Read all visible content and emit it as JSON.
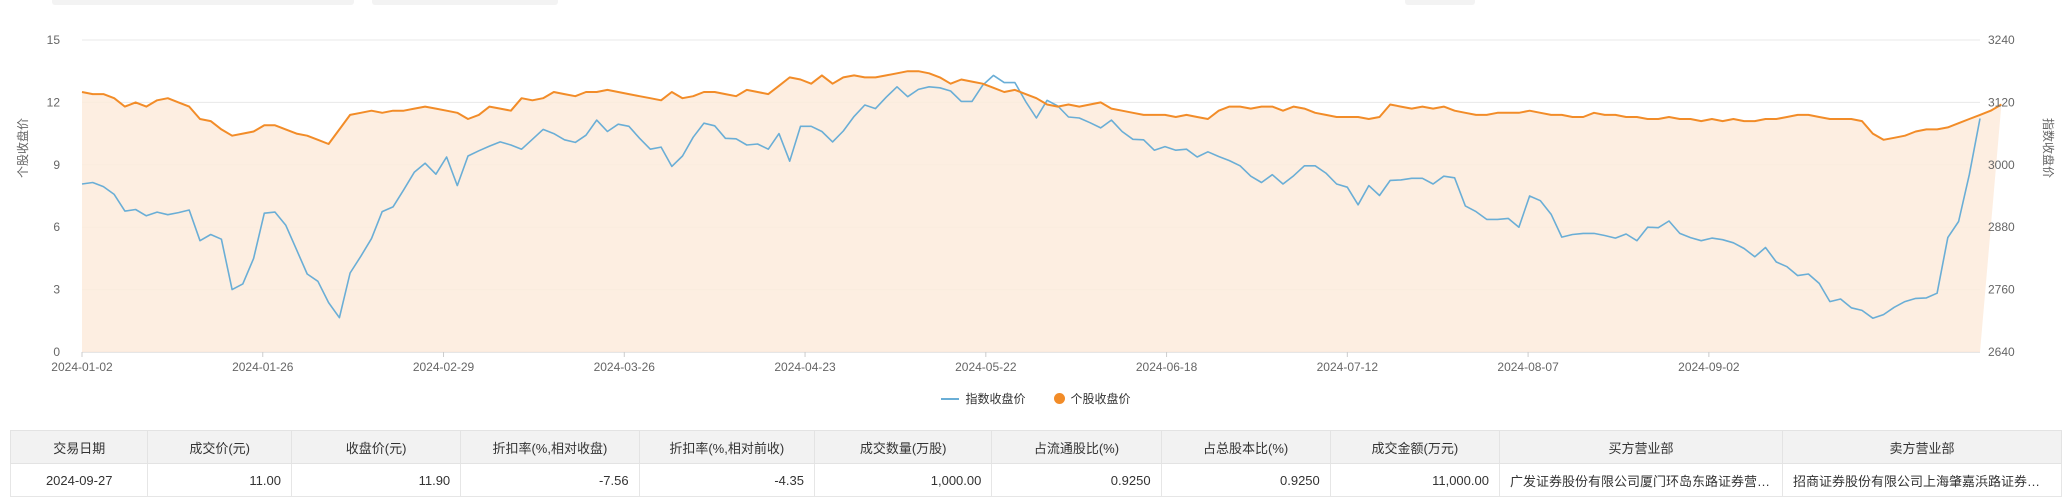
{
  "chart_data": {
    "type": "line",
    "title": "",
    "y_left": {
      "label": "个股收盘价",
      "ticks": [
        "0",
        "3",
        "6",
        "9",
        "12",
        "15"
      ],
      "range": [
        0,
        15
      ]
    },
    "y_right": {
      "label": "指数收盘价",
      "ticks": [
        "2640",
        "2760",
        "2880",
        "3000",
        "3120",
        "3240"
      ],
      "range": [
        2640,
        3240
      ]
    },
    "x_ticks": [
      "2024-01-02",
      "2024-01-26",
      "2024-02-29",
      "2024-03-26",
      "2024-04-23",
      "2024-05-22",
      "2024-06-18",
      "2024-07-12",
      "2024-08-07",
      "2024-09-02"
    ],
    "legend_position": "bottom-center",
    "grid": true,
    "series": [
      {
        "name": "指数收盘价",
        "axis": "right",
        "color": "#6aaed6",
        "style": "line",
        "values": [
          2963,
          2966,
          2958,
          2943,
          2911,
          2914,
          2902,
          2909,
          2904,
          2908,
          2913,
          2854,
          2866,
          2857,
          2760,
          2771,
          2820,
          2907,
          2909,
          2884,
          2837,
          2790,
          2776,
          2735,
          2706,
          2792,
          2824,
          2858,
          2910,
          2919,
          2952,
          2986,
          3003,
          2982,
          3015,
          2960,
          3017,
          3027,
          3036,
          3044,
          3038,
          3030,
          3049,
          3068,
          3060,
          3048,
          3043,
          3057,
          3086,
          3064,
          3078,
          3074,
          3051,
          3030,
          3034,
          2997,
          3017,
          3053,
          3080,
          3075,
          3051,
          3050,
          3038,
          3040,
          3030,
          3060,
          3007,
          3074,
          3074,
          3064,
          3044,
          3065,
          3093,
          3115,
          3108,
          3130,
          3150,
          3131,
          3145,
          3150,
          3148,
          3142,
          3122,
          3122,
          3153,
          3172,
          3158,
          3158,
          3122,
          3090,
          3124,
          3113,
          3092,
          3090,
          3081,
          3071,
          3086,
          3064,
          3049,
          3048,
          3028,
          3035,
          3028,
          3030,
          3015,
          3025,
          3016,
          3008,
          2998,
          2978,
          2966,
          2981,
          2963,
          2979,
          2998,
          2998,
          2984,
          2963,
          2957,
          2923,
          2960,
          2941,
          2970,
          2971,
          2974,
          2974,
          2963,
          2978,
          2975,
          2921,
          2910,
          2895,
          2895,
          2897,
          2880,
          2940,
          2931,
          2905,
          2861,
          2866,
          2868,
          2868,
          2864,
          2859,
          2867,
          2854,
          2880,
          2879,
          2892,
          2868,
          2860,
          2854,
          2859,
          2856,
          2850,
          2839,
          2823,
          2841,
          2813,
          2804,
          2787,
          2790,
          2772,
          2737,
          2742,
          2725,
          2720,
          2705,
          2712,
          2726,
          2737,
          2743,
          2744,
          2753,
          2860,
          2891,
          2981,
          3089
        ]
      },
      {
        "name": "个股收盘价",
        "axis": "left",
        "color": "#f28c28",
        "style": "area",
        "values": [
          12.5,
          12.4,
          12.4,
          12.2,
          11.8,
          12.0,
          11.8,
          12.1,
          12.2,
          12.0,
          11.8,
          11.2,
          11.1,
          10.7,
          10.4,
          10.5,
          10.6,
          10.9,
          10.9,
          10.7,
          10.5,
          10.4,
          10.2,
          10.0,
          10.7,
          11.4,
          11.5,
          11.6,
          11.5,
          11.6,
          11.6,
          11.7,
          11.8,
          11.7,
          11.6,
          11.5,
          11.2,
          11.4,
          11.8,
          11.7,
          11.6,
          12.2,
          12.1,
          12.2,
          12.5,
          12.4,
          12.3,
          12.5,
          12.5,
          12.6,
          12.5,
          12.4,
          12.3,
          12.2,
          12.1,
          12.5,
          12.2,
          12.3,
          12.5,
          12.5,
          12.4,
          12.3,
          12.6,
          12.5,
          12.4,
          12.8,
          13.2,
          13.1,
          12.9,
          13.3,
          12.9,
          13.2,
          13.3,
          13.2,
          13.2,
          13.3,
          13.4,
          13.5,
          13.5,
          13.4,
          13.2,
          12.9,
          13.1,
          13.0,
          12.9,
          12.7,
          12.5,
          12.6,
          12.4,
          12.2,
          11.9,
          11.8,
          11.9,
          11.8,
          11.9,
          12.0,
          11.7,
          11.6,
          11.5,
          11.4,
          11.4,
          11.4,
          11.3,
          11.4,
          11.3,
          11.2,
          11.6,
          11.8,
          11.8,
          11.7,
          11.8,
          11.8,
          11.6,
          11.8,
          11.7,
          11.5,
          11.4,
          11.3,
          11.3,
          11.3,
          11.2,
          11.3,
          11.9,
          11.8,
          11.7,
          11.8,
          11.7,
          11.8,
          11.6,
          11.5,
          11.4,
          11.4,
          11.5,
          11.5,
          11.5,
          11.6,
          11.5,
          11.4,
          11.4,
          11.3,
          11.3,
          11.5,
          11.4,
          11.4,
          11.3,
          11.3,
          11.2,
          11.2,
          11.3,
          11.2,
          11.2,
          11.1,
          11.2,
          11.1,
          11.2,
          11.1,
          11.1,
          11.2,
          11.2,
          11.3,
          11.4,
          11.4,
          11.3,
          11.2,
          11.2,
          11.2,
          11.1,
          10.5,
          10.2,
          10.3,
          10.4,
          10.6,
          10.7,
          10.7,
          10.8,
          11.0,
          11.2,
          11.4,
          11.6,
          11.9
        ]
      }
    ]
  },
  "legend": {
    "items": [
      "指数收盘价",
      "个股收盘价"
    ]
  },
  "table": {
    "headers": [
      "交易日期",
      "成交价(元)",
      "收盘价(元)",
      "折扣率(%,相对收盘)",
      "折扣率(%,相对前收)",
      "成交数量(万股)",
      "占流通股比(%)",
      "占总股本比(%)",
      "成交金额(万元)",
      "买方营业部",
      "卖方营业部"
    ],
    "rows": [
      [
        "2024-09-27",
        "11.00",
        "11.90",
        "-7.56",
        "-4.35",
        "1,000.00",
        "0.9250",
        "0.9250",
        "11,000.00",
        "广发证券股份有限公司厦门环岛东路证券营业部",
        "招商证券股份有限公司上海肇嘉浜路证券营业部"
      ]
    ]
  }
}
